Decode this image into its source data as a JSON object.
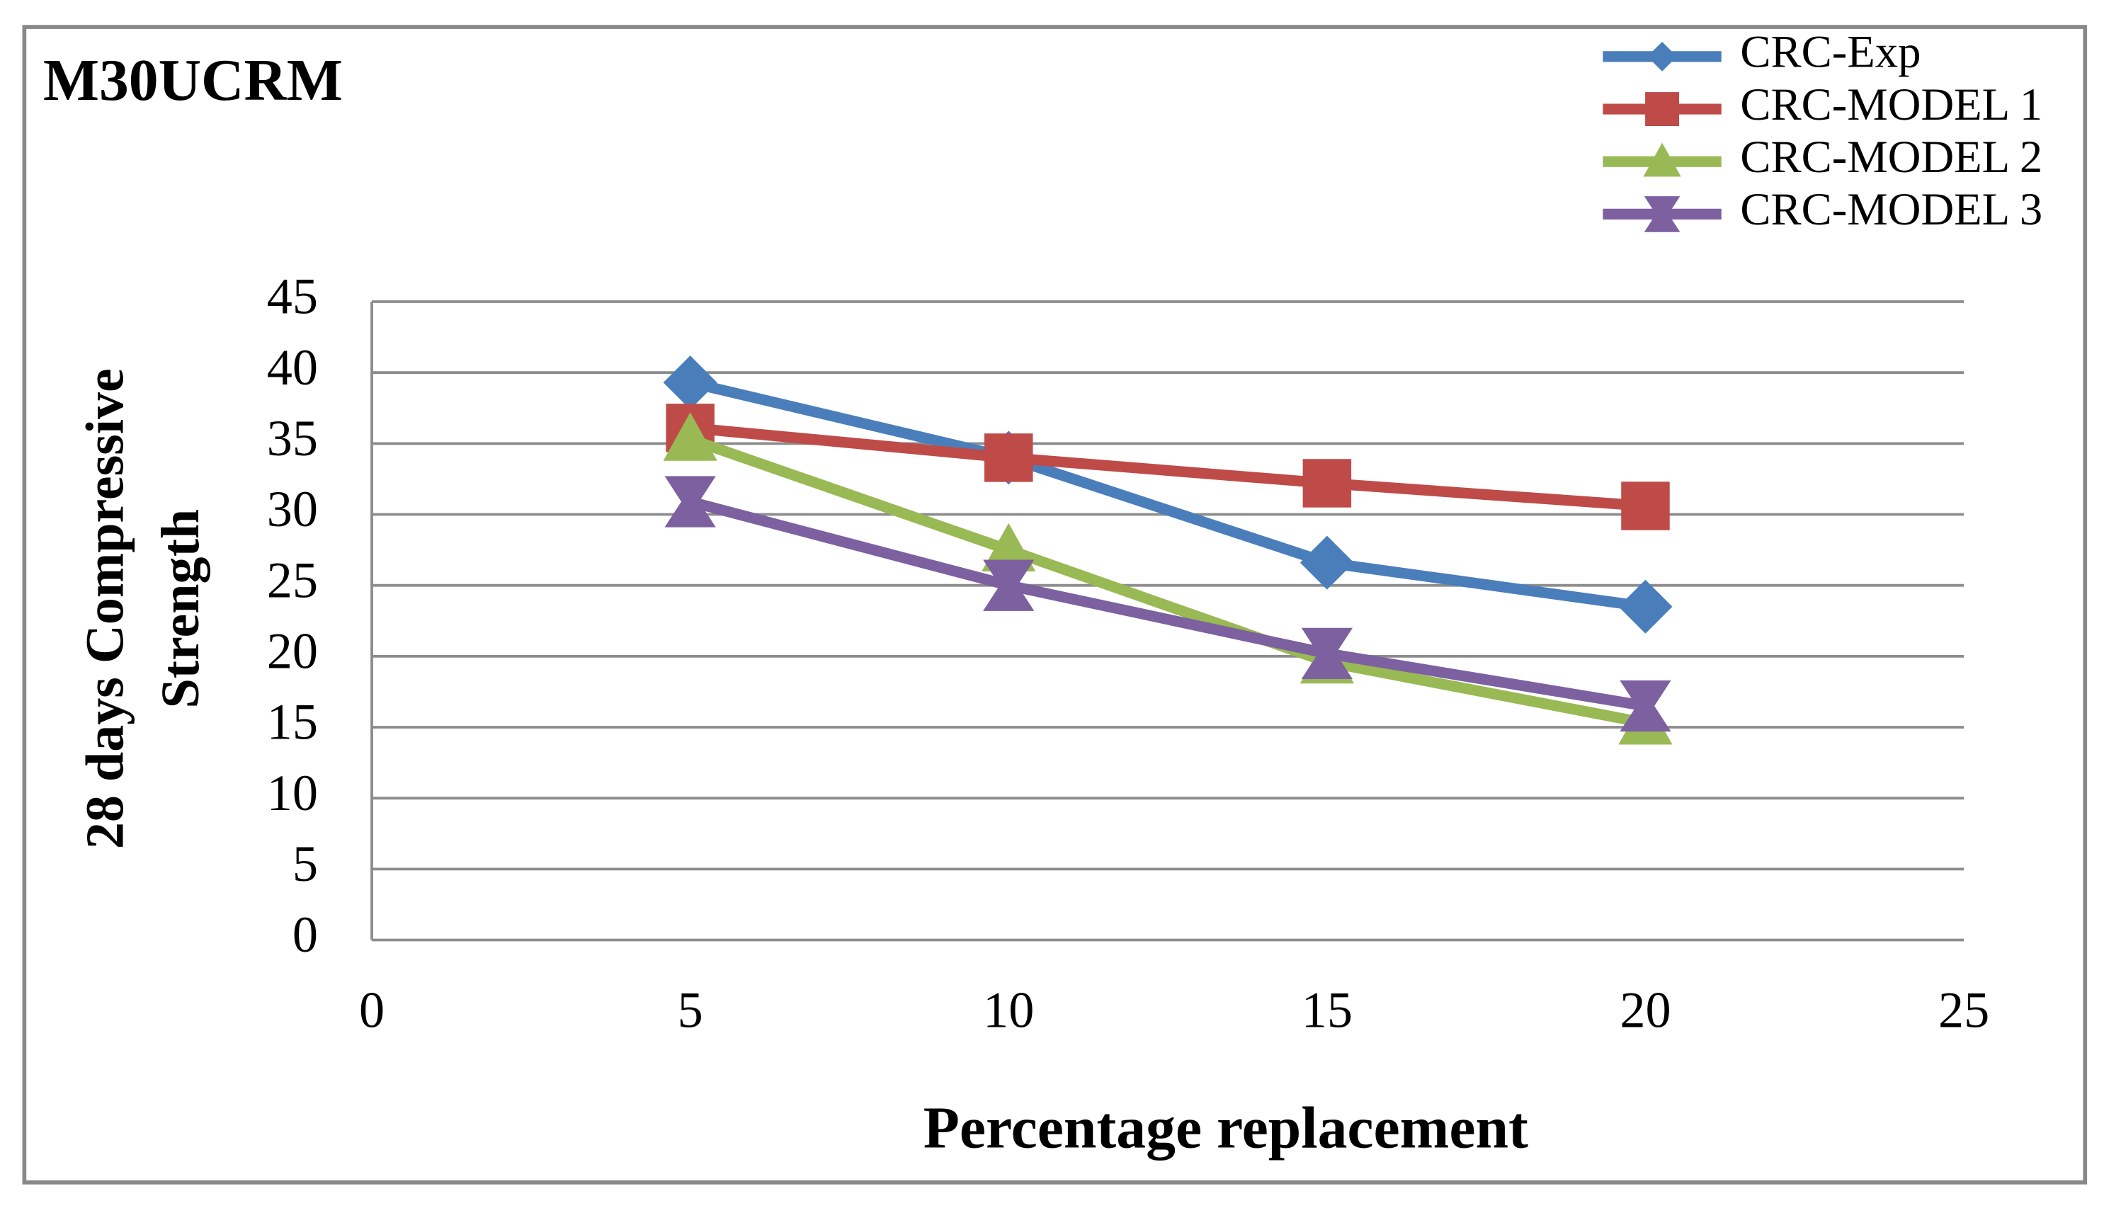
{
  "chart_data": {
    "type": "line",
    "title": "M30UCRM",
    "xlabel": "Percentage replacement",
    "ylabel": [
      "28 days Compressive",
      "Strength"
    ],
    "x": [
      5,
      10,
      15,
      20
    ],
    "xlim": [
      0,
      25
    ],
    "xticks": [
      0,
      5,
      10,
      15,
      20,
      25
    ],
    "ylim": [
      0,
      45
    ],
    "yticks": [
      0,
      5,
      10,
      15,
      20,
      25,
      30,
      35,
      40,
      45
    ],
    "grid": true,
    "legend": "top-right",
    "series": [
      {
        "name": "CRC-Exp",
        "color": "#4a7ebb",
        "marker": "diamond",
        "values": [
          39.3,
          34,
          26.6,
          23.5
        ]
      },
      {
        "name": "CRC-MODEL 1",
        "color": "#be4b48",
        "marker": "square",
        "values": [
          36.1,
          34,
          32.2,
          30.6
        ]
      },
      {
        "name": "CRC-MODEL 2",
        "color": "#98b954",
        "marker": "triangle",
        "values": [
          35.3,
          27.5,
          19.6,
          15.3
        ]
      },
      {
        "name": "CRC-MODEL 3",
        "color": "#7d60a0",
        "marker": "star",
        "values": [
          30.9,
          25,
          20.2,
          16.5
        ]
      }
    ]
  }
}
